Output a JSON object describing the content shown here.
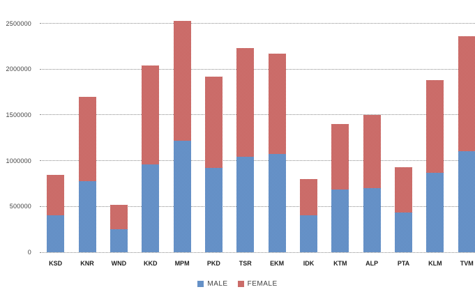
{
  "window": {
    "background": "#ffffff"
  },
  "chart_data": {
    "type": "bar",
    "stacked": true,
    "title": "",
    "xlabel": "",
    "ylabel": "",
    "categories": [
      "KSD",
      "KNR",
      "WND",
      "KKD",
      "MPM",
      "PKD",
      "TSR",
      "EKM",
      "IDK",
      "KTM",
      "ALP",
      "PTA",
      "KLM",
      "TVM"
    ],
    "series": [
      {
        "name": "MALE",
        "color": "#4f81bd",
        "color_light": "#7ba0d0",
        "values": [
          400000,
          775000,
          250000,
          960000,
          1220000,
          920000,
          1040000,
          1070000,
          400000,
          685000,
          700000,
          430000,
          870000,
          1100000
        ]
      },
      {
        "name": "FEMALE",
        "color": "#c0504d",
        "color_light": "#d68885",
        "values": [
          445000,
          925000,
          270000,
          1080000,
          1310000,
          1000000,
          1190000,
          1100000,
          400000,
          715000,
          800000,
          500000,
          1010000,
          1260000
        ]
      }
    ],
    "totals": [
      845000,
      1700000,
      520000,
      2040000,
      2530000,
      1920000,
      2230000,
      2170000,
      800000,
      1400000,
      1500000,
      930000,
      1880000,
      2360000
    ],
    "ylim": [
      0,
      2630000
    ],
    "yticks": [
      {
        "v": 0,
        "label": "0"
      },
      {
        "v": 500000,
        "label": "500000"
      },
      {
        "v": 1000000,
        "label": "1000000"
      },
      {
        "v": 1500000,
        "label": "1500000"
      },
      {
        "v": 2000000,
        "label": "2000000"
      },
      {
        "v": 2500000,
        "label": "2500000"
      }
    ],
    "grid": true,
    "gridline_color": "#898989",
    "legend_position": "bottom",
    "legend_items": [
      "MALE",
      "FEMALE"
    ]
  }
}
